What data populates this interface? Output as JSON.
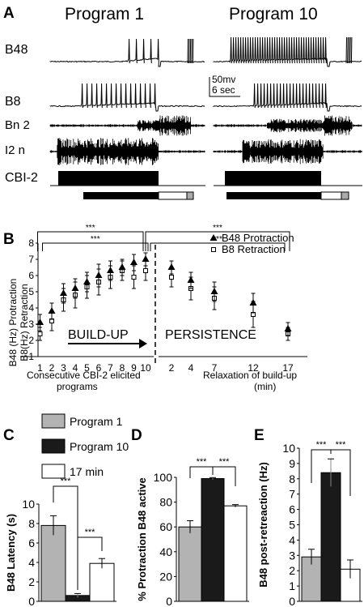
{
  "panels": {
    "A": {
      "label": "A",
      "col1_title": "Program 1",
      "col2_title": "Program 10",
      "traces": [
        "B48",
        "B8",
        "Bn 2",
        "I2 n",
        "CBI-2"
      ],
      "scalebar": {
        "v": "50mv",
        "t": "6 sec"
      }
    },
    "B": {
      "label": "B",
      "ylabel1": "B48 (Hz) Protraction",
      "ylabel2": "B8(Hz) Retraction",
      "sig": [
        "***",
        "***",
        "***",
        "***"
      ],
      "legend": [
        "B48 Protraction",
        "B8 Retraction"
      ],
      "buildup": "BUILD-UP",
      "persistence": "PERSISTENCE",
      "xlabel_left": "Consecutive CBI-2 elicited\nprograms",
      "xlabel_right": "Relaxation of build-up\n(min)"
    },
    "C": {
      "label": "C",
      "legend": [
        "Program 1",
        "Program 10",
        "17 min"
      ],
      "sig": [
        "***",
        "***"
      ]
    },
    "D": {
      "label": "D",
      "sig": [
        "***",
        "***"
      ]
    },
    "E": {
      "label": "E",
      "sig": [
        "***",
        "***"
      ]
    }
  },
  "colors": {
    "program1": "#b3b3b3",
    "program10": "#1a1a1a",
    "min17": "#ffffff"
  },
  "chart_data": [
    {
      "panel": "B",
      "type": "scatter",
      "x_left": [
        "1",
        "2",
        "3",
        "4",
        "5",
        "6",
        "7",
        "8",
        "9",
        "10"
      ],
      "x_right": [
        "2",
        "4",
        "7",
        "12",
        "17"
      ],
      "yticks": [
        "1",
        "2",
        "3",
        "4",
        "5",
        "6",
        "7",
        "8"
      ],
      "ylim": [
        1,
        8
      ],
      "series": [
        {
          "name": "B48 Protraction",
          "left": [
            3.1,
            3.8,
            4.9,
            5.2,
            5.6,
            6.0,
            6.3,
            6.5,
            6.8,
            7.0
          ],
          "left_err": [
            0.5,
            0.5,
            0.6,
            0.6,
            0.6,
            0.7,
            0.6,
            0.5,
            0.5,
            0.4
          ],
          "right": [
            6.5,
            5.7,
            5.0,
            4.3,
            2.7
          ],
          "right_err": [
            0.4,
            0.5,
            0.6,
            0.6,
            0.4
          ]
        },
        {
          "name": "B8 Retraction",
          "left": [
            2.4,
            3.2,
            4.5,
            4.8,
            5.3,
            5.6,
            5.9,
            6.3,
            5.9,
            6.3
          ],
          "left_err": [
            0.4,
            0.6,
            0.7,
            0.8,
            0.7,
            0.8,
            0.7,
            0.6,
            0.7,
            0.6
          ],
          "right": [
            5.9,
            5.2,
            4.6,
            3.6,
            2.4
          ],
          "right_err": [
            0.6,
            0.7,
            0.7,
            0.8,
            0.4
          ]
        }
      ]
    },
    {
      "panel": "C",
      "type": "bar",
      "categories": [
        "Program 1",
        "Program 10",
        "17 min"
      ],
      "values": [
        7.8,
        0.6,
        3.9
      ],
      "errors": [
        1.0,
        0.2,
        0.5
      ],
      "ylabel": "B48 Latency (s)",
      "ylim": [
        0,
        10
      ],
      "yticks": [
        "0",
        "2",
        "4",
        "6",
        "8",
        "10"
      ]
    },
    {
      "panel": "D",
      "type": "bar",
      "categories": [
        "Program 1",
        "Program 10",
        "17 min"
      ],
      "values": [
        60,
        99,
        77
      ],
      "errors": [
        5,
        0.8,
        1
      ],
      "ylabel": "% Protraction B48 active",
      "ylim": [
        0,
        100
      ],
      "yticks": [
        "0",
        "20",
        "40",
        "60",
        "80",
        "100"
      ]
    },
    {
      "panel": "E",
      "type": "bar",
      "categories": [
        "Program 1",
        "Program 10",
        "17 min"
      ],
      "values": [
        2.9,
        8.4,
        2.1
      ],
      "errors": [
        0.5,
        0.9,
        0.6
      ],
      "ylabel": "B48 post-retreaction (Hz)",
      "ylim": [
        0,
        10
      ],
      "yticks": [
        "0",
        "1",
        "2",
        "3",
        "4",
        "5",
        "6",
        "7",
        "8",
        "9",
        "10"
      ]
    }
  ]
}
